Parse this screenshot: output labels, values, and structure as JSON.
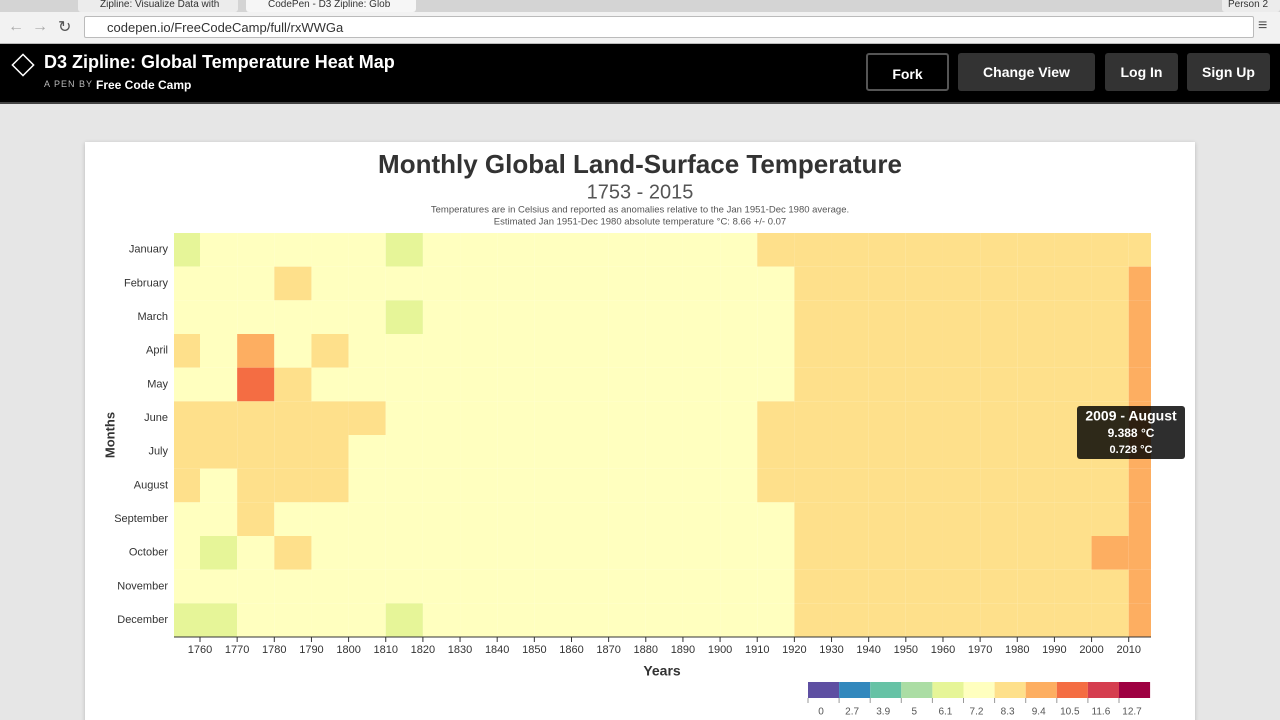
{
  "browser": {
    "tabs": [
      "Zipline: Visualize Data with",
      "CodePen - D3 Zipline: Glob"
    ],
    "url": "codepen.io/FreeCodeCamp/full/rxWWGa",
    "profile": "Person 2"
  },
  "header": {
    "title": "D3 Zipline: Global Temperature Heat Map",
    "byline": "A PEN BY",
    "author": "Free Code Camp",
    "buttons": [
      "Fork",
      "Change View",
      "Log In",
      "Sign Up"
    ]
  },
  "chart_data": {
    "type": "heatmap",
    "title": "Monthly Global Land-Surface Temperature",
    "subtitle": "1753 - 2015",
    "description": [
      "Temperatures are in Celsius and reported as anomalies relative to the Jan 1951-Dec 1980 average.",
      "Estimated Jan 1951-Dec 1980 absolute temperature °C: 8.66 +/- 0.07"
    ],
    "x_label": "Years",
    "y_label": "Months",
    "categories": [
      "January",
      "February",
      "March",
      "April",
      "May",
      "June",
      "July",
      "August",
      "September",
      "October",
      "November",
      "December"
    ],
    "x": [
      1753,
      1760,
      1770,
      1780,
      1790,
      1800,
      1810,
      1820,
      1830,
      1840,
      1850,
      1860,
      1870,
      1880,
      1890,
      1900,
      1910,
      1920,
      1930,
      1940,
      1950,
      1960,
      1970,
      1980,
      1990,
      2000,
      2010
    ],
    "xlim": [
      1753,
      2016
    ],
    "xticks": [
      1760,
      1770,
      1780,
      1790,
      1800,
      1810,
      1820,
      1830,
      1840,
      1850,
      1860,
      1870,
      1880,
      1890,
      1900,
      1910,
      1920,
      1930,
      1940,
      1950,
      1960,
      1970,
      1980,
      1990,
      2000,
      2010
    ],
    "values": [
      [
        6.9,
        7.4,
        7.8,
        7.3,
        7.9,
        7.2,
        6.8,
        7.5,
        7.6,
        7.7,
        7.8,
        7.6,
        7.7,
        7.8,
        7.9,
        7.8,
        8.3,
        8.5,
        8.5,
        8.6,
        8.6,
        8.6,
        8.5,
        8.7,
        8.8,
        9.1,
        9.3
      ],
      [
        7.3,
        8.2,
        7.9,
        8.4,
        8.1,
        7.5,
        7.2,
        7.6,
        7.8,
        7.8,
        7.7,
        7.7,
        7.8,
        7.9,
        7.8,
        7.9,
        8.2,
        8.4,
        8.5,
        8.5,
        8.6,
        8.5,
        8.5,
        8.6,
        8.9,
        9.2,
        9.4
      ],
      [
        7.8,
        7.2,
        7.6,
        7.9,
        8.0,
        7.9,
        6.9,
        7.7,
        7.9,
        7.9,
        7.8,
        7.7,
        7.8,
        7.8,
        7.9,
        7.9,
        8.1,
        8.4,
        8.5,
        8.4,
        8.6,
        8.5,
        8.4,
        8.6,
        8.8,
        9.1,
        9.5
      ],
      [
        8.3,
        8.1,
        9.6,
        8.2,
        8.3,
        8.0,
        7.6,
        7.9,
        8.0,
        8.0,
        7.9,
        7.9,
        8.0,
        8.0,
        7.9,
        8.0,
        8.2,
        8.4,
        8.5,
        8.5,
        8.6,
        8.5,
        8.5,
        8.6,
        8.9,
        9.2,
        9.5
      ],
      [
        8.2,
        8.0,
        10.6,
        8.4,
        8.2,
        8.1,
        7.8,
        8.0,
        8.0,
        7.9,
        7.9,
        7.9,
        8.0,
        8.0,
        8.0,
        8.0,
        8.2,
        8.4,
        8.5,
        8.6,
        8.6,
        8.5,
        8.5,
        8.6,
        8.8,
        9.2,
        9.4
      ],
      [
        8.5,
        8.4,
        8.6,
        8.5,
        8.4,
        8.3,
        7.9,
        8.1,
        8.2,
        8.1,
        8.0,
        8.0,
        8.1,
        8.1,
        8.0,
        8.1,
        8.3,
        8.5,
        8.6,
        8.6,
        8.7,
        8.6,
        8.6,
        8.7,
        8.9,
        9.2,
        9.5
      ],
      [
        8.4,
        8.9,
        8.5,
        8.5,
        8.6,
        8.2,
        8.0,
        8.1,
        8.1,
        8.1,
        8.0,
        8.1,
        8.1,
        8.1,
        8.0,
        8.1,
        8.3,
        8.5,
        8.6,
        8.6,
        8.6,
        8.6,
        8.6,
        8.6,
        8.9,
        9.2,
        9.5
      ],
      [
        8.3,
        8.2,
        8.4,
        8.4,
        8.3,
        8.0,
        7.9,
        8.0,
        8.0,
        8.0,
        7.9,
        8.0,
        8.0,
        8.0,
        7.9,
        8.0,
        8.3,
        8.5,
        8.6,
        8.6,
        8.6,
        8.6,
        8.6,
        8.7,
        8.9,
        9.2,
        9.4
      ],
      [
        8.1,
        8.2,
        8.3,
        8.2,
        8.1,
        7.9,
        7.6,
        7.9,
        7.9,
        7.9,
        7.8,
        7.9,
        7.9,
        8.0,
        7.9,
        8.0,
        8.2,
        8.5,
        8.6,
        8.6,
        8.6,
        8.5,
        8.5,
        8.6,
        8.8,
        9.2,
        9.4
      ],
      [
        7.7,
        7.1,
        8.2,
        8.3,
        8.0,
        7.9,
        7.5,
        7.8,
        7.9,
        7.9,
        7.8,
        7.8,
        7.9,
        7.9,
        7.9,
        7.9,
        8.2,
        8.5,
        8.6,
        8.6,
        8.6,
        8.5,
        8.5,
        8.6,
        8.8,
        9.4,
        9.6
      ],
      [
        7.6,
        7.8,
        7.9,
        7.6,
        7.7,
        7.6,
        7.3,
        7.7,
        7.8,
        7.8,
        7.7,
        7.6,
        7.8,
        7.8,
        7.9,
        7.8,
        8.2,
        8.4,
        8.5,
        8.5,
        8.6,
        8.5,
        8.5,
        8.6,
        8.8,
        9.2,
        9.5
      ],
      [
        6.6,
        7.0,
        7.6,
        7.4,
        7.8,
        7.6,
        7.1,
        7.5,
        7.7,
        7.7,
        7.6,
        7.6,
        7.8,
        7.8,
        7.9,
        7.8,
        8.2,
        8.4,
        8.5,
        8.5,
        8.6,
        8.5,
        8.5,
        8.7,
        8.8,
        9.2,
        9.4
      ]
    ],
    "legend": {
      "thresholds": [
        0,
        2.7,
        3.9,
        5,
        6.1,
        7.2,
        8.3,
        9.4,
        10.5,
        11.6,
        12.7
      ],
      "colors": [
        "#5e4fa2",
        "#3288bd",
        "#66c2a5",
        "#abdda4",
        "#e6f598",
        "#ffffbf",
        "#fee08b",
        "#fdae61",
        "#f46d43",
        "#d53e4f",
        "#9e0142"
      ]
    },
    "tooltip": {
      "title": "2009 - August",
      "value": "9.388 °C",
      "variance": "0.728 °C"
    }
  }
}
